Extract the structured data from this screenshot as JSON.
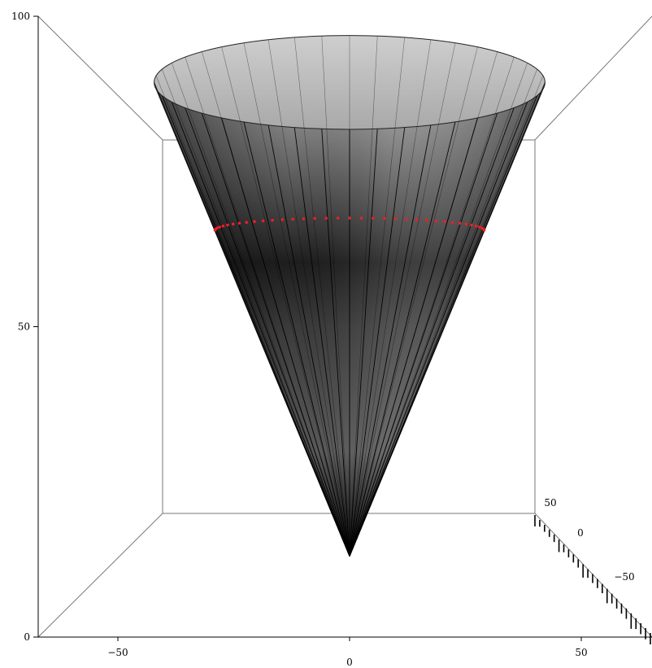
{
  "chart_data": {
    "type": "surface3d",
    "title": "",
    "xlabel": "",
    "ylabel": "",
    "zlabel": "",
    "surface": "cone",
    "apex_height": 13,
    "top_height": 90,
    "top_radius": 57,
    "meridian_count": 44,
    "ranges": {
      "x": [
        -70,
        70
      ],
      "y": [
        -70,
        70
      ],
      "z": [
        0,
        100
      ]
    },
    "axes": {
      "vertical": {
        "ticks": [
          {
            "value": 0,
            "label": "0"
          },
          {
            "value": 50,
            "label": "50"
          },
          {
            "value": 100,
            "label": "100"
          }
        ]
      },
      "horizontal": {
        "ticks": [
          {
            "value": -50,
            "label": "−50"
          },
          {
            "value": 0,
            "label": "0"
          },
          {
            "value": 50,
            "label": "50"
          }
        ]
      },
      "depth": {
        "ticks": [
          {
            "value": 50,
            "label": "50"
          },
          {
            "value": 0,
            "label": "0"
          },
          {
            "value": -50,
            "label": "−50"
          }
        ]
      }
    },
    "marked_circle": {
      "height": 66,
      "color": "#e8202a",
      "style": "dotted"
    },
    "colors": {
      "surface_light": "#b8b8b8",
      "surface_dark": "#1a1a1a",
      "meridian": "#000000",
      "box_edge": "#777777"
    }
  }
}
